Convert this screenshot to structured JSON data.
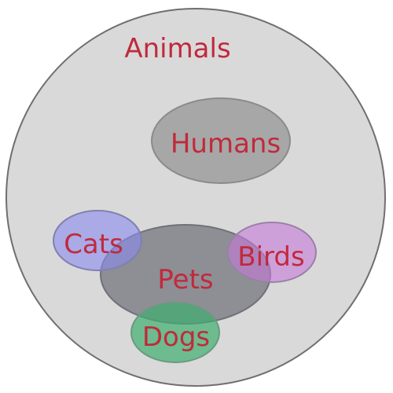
{
  "diagram": {
    "title": "Animals",
    "sets": {
      "humans": {
        "label": "Humans",
        "color": "#9a9a9a"
      },
      "pets": {
        "label": "Pets",
        "color": "#6e6e78"
      },
      "cats": {
        "label": "Cats",
        "color": "#8a8af0"
      },
      "birds": {
        "label": "Birds",
        "color": "#c77ad9"
      },
      "dogs": {
        "label": "Dogs",
        "color": "#3fae6e"
      }
    },
    "colors": {
      "outer_fill": "#d9d9d9",
      "outline": "#6f6f6f",
      "label_text": "#c02a3c"
    }
  }
}
